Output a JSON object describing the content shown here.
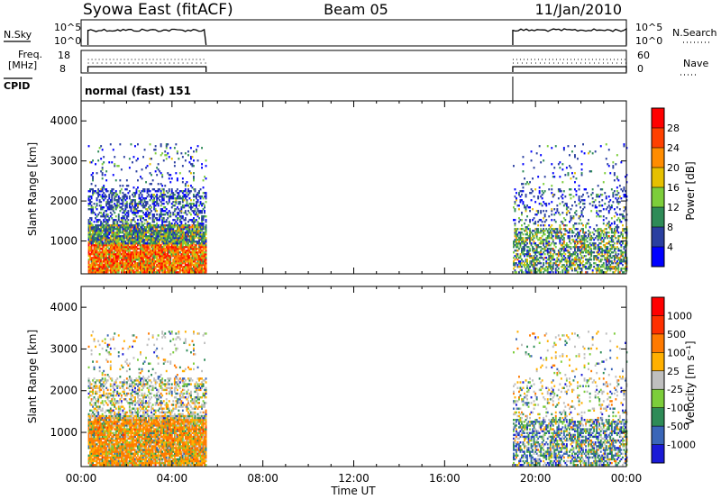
{
  "header": {
    "station": "Syowa East (fitACF)",
    "beam": "Beam 05",
    "date": "11/Jan/2010"
  },
  "summary_panels": {
    "nsky_label": "N.Sky",
    "nsearch_label": "N.Search",
    "freq_label_line1": "Freq.",
    "freq_label_line2": "[MHz]",
    "nave_label": "Nave",
    "cpid_label": "CPID",
    "cpid_value": "normal (fast) 151",
    "noise_ticks": [
      "10^5",
      "10^0"
    ],
    "freq_ticks": [
      "18",
      "8"
    ],
    "nave_ticks": [
      "60",
      "0"
    ]
  },
  "colorbars": {
    "power": {
      "label": "Power [dB]",
      "ticks": [
        "28",
        "24",
        "20",
        "16",
        "12",
        "8",
        "4"
      ],
      "colors": [
        "#0000ff",
        "#2a3fa0",
        "#2e8b57",
        "#7ccd3a",
        "#e6c000",
        "#ff8c00",
        "#ff4000",
        "#ff0000"
      ]
    },
    "velocity": {
      "label": "Velocity [m s⁻¹]",
      "ticks": [
        "1000",
        "500",
        "100",
        "25",
        "-25",
        "-100",
        "-500",
        "-1000"
      ],
      "colors": [
        "#1a1ad6",
        "#3a66b8",
        "#2e8b57",
        "#7ccd3a",
        "#bfbfbf",
        "#ffb000",
        "#ff7a00",
        "#ff3000",
        "#ff0000"
      ]
    }
  },
  "chart_data": [
    {
      "type": "heatmap",
      "title": "Power",
      "ylabel": "Slant Range [km]",
      "xlabel": "Time UT",
      "x_ticks": [
        "00:00",
        "04:00",
        "08:00",
        "12:00",
        "16:00",
        "20:00",
        "00:00"
      ],
      "y_ticks": [
        "1000",
        "2000",
        "3000",
        "4000"
      ],
      "xlim_hours": [
        0,
        24
      ],
      "ylim_km": [
        180,
        4500
      ],
      "data_intervals_hours": [
        [
          0.3,
          5.5
        ],
        [
          19.0,
          24.0
        ]
      ]
    },
    {
      "type": "heatmap",
      "title": "Velocity",
      "ylabel": "Slant Range [km]",
      "xlabel": "Time UT",
      "x_ticks": [
        "00:00",
        "04:00",
        "08:00",
        "12:00",
        "16:00",
        "20:00",
        "00:00"
      ],
      "y_ticks": [
        "1000",
        "2000",
        "3000",
        "4000"
      ],
      "xlim_hours": [
        0,
        24
      ],
      "ylim_km": [
        180,
        4500
      ],
      "data_intervals_hours": [
        [
          0.3,
          5.5
        ],
        [
          19.0,
          24.0
        ]
      ]
    }
  ]
}
